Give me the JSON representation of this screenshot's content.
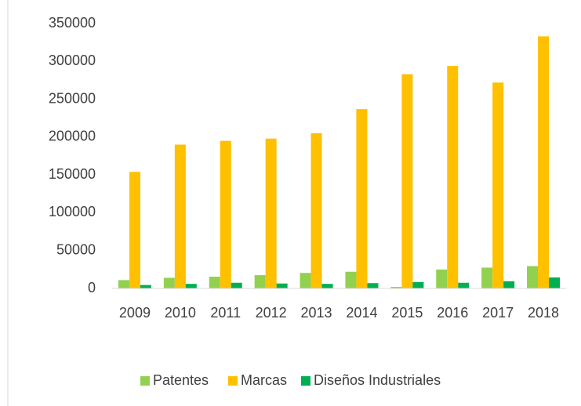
{
  "chart_data": {
    "type": "bar",
    "categories": [
      "2009",
      "2010",
      "2011",
      "2012",
      "2013",
      "2014",
      "2015",
      "2016",
      "2017",
      "2018"
    ],
    "series": [
      {
        "name": "Patentes",
        "color": "#92d050",
        "values": [
          11000,
          14000,
          15500,
          17500,
          20500,
          22000,
          2000,
          25000,
          27500,
          29500
        ]
      },
      {
        "name": "Marcas",
        "color": "#ffc000",
        "values": [
          154000,
          190000,
          195000,
          198000,
          205000,
          237000,
          283000,
          294000,
          272000,
          333000
        ]
      },
      {
        "name": "Diseños Industriales",
        "color": "#00b050",
        "values": [
          4500,
          6000,
          7500,
          6500,
          6000,
          7000,
          8500,
          7500,
          9500,
          14500
        ]
      }
    ],
    "ylim": [
      0,
      350000
    ],
    "yticks": [
      0,
      50000,
      100000,
      150000,
      200000,
      250000,
      300000,
      350000
    ],
    "grid": false,
    "legend": "bottom"
  }
}
